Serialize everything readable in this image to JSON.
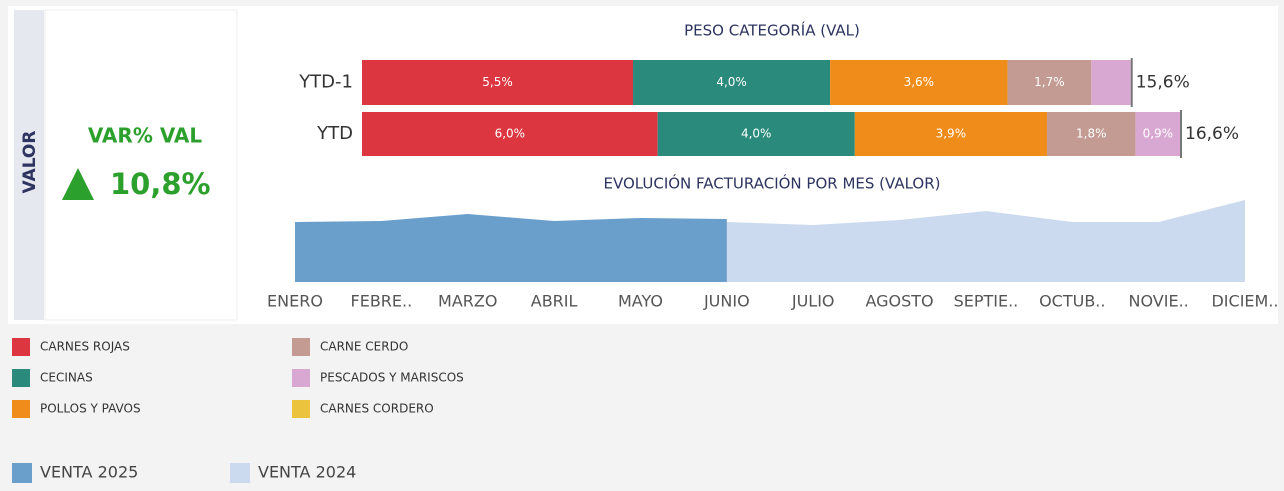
{
  "section": "VALOR",
  "kpi": {
    "label": "VAR% VAL",
    "value": "10,8%"
  },
  "chart_data": [
    {
      "type": "stacked_bar_h",
      "title": "PESO CATEGORÍA (VAL)",
      "categories": [
        "YTD-1",
        "YTD"
      ],
      "xlim": [
        0,
        18
      ],
      "series": [
        {
          "name": "CARNES ROJAS",
          "color": "#dc3640",
          "values": [
            5.5,
            6.0
          ],
          "value_labels": [
            "5,5%",
            "6,0%"
          ]
        },
        {
          "name": "CECINAS",
          "color": "#2a8a7b",
          "values": [
            4.0,
            4.0
          ],
          "value_labels": [
            "4,0%",
            "4,0%"
          ]
        },
        {
          "name": "POLLOS Y PAVOS",
          "color": "#f08c1a",
          "values": [
            3.6,
            3.9
          ],
          "value_labels": [
            "3,6%",
            "3,9%"
          ]
        },
        {
          "name": "CARNE CERDO",
          "color": "#c49b93",
          "values": [
            1.7,
            1.8
          ],
          "value_labels": [
            "1,7%",
            "1,8%"
          ]
        },
        {
          "name": "PESCADOS Y MARISCOS",
          "color": "#d9a8d2",
          "values": [
            0.8,
            0.9
          ],
          "value_labels": [
            null,
            "0,9%"
          ]
        },
        {
          "name": "CARNES CORDERO",
          "color": "#ebc33c",
          "values": [
            0,
            0
          ],
          "value_labels": [
            null,
            null
          ]
        }
      ],
      "totals": [
        15.6,
        16.6
      ],
      "total_labels": [
        "15,6%",
        "16,6%"
      ]
    },
    {
      "type": "area",
      "title": "EVOLUCIÓN FACTURACIÓN POR MES (VALOR)",
      "categories": [
        "ENERO",
        "FEBRE..",
        "MARZO",
        "ABRIL",
        "MAYO",
        "JUNIO",
        "JULIO",
        "AGOSTO",
        "SEPTIE..",
        "OCTUB..",
        "NOVIE..",
        "DICIEM.."
      ],
      "ylim": [
        0,
        90
      ],
      "series": [
        {
          "name": "VENTA 2025",
          "color": "#6a9fcb",
          "values": [
            60,
            61,
            68,
            61,
            64,
            63,
            null,
            null,
            null,
            null,
            null,
            null
          ]
        },
        {
          "name": "VENTA 2024",
          "color": "#cbdaee",
          "values": [
            58,
            59,
            64,
            59,
            61,
            60,
            57,
            62,
            71,
            60,
            60,
            82
          ]
        }
      ]
    }
  ]
}
